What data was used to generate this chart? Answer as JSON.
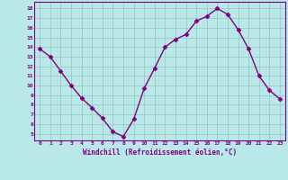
{
  "x": [
    0,
    1,
    2,
    3,
    4,
    5,
    6,
    7,
    8,
    9,
    10,
    11,
    12,
    13,
    14,
    15,
    16,
    17,
    18,
    19,
    20,
    21,
    22,
    23
  ],
  "y": [
    13.8,
    13.0,
    11.5,
    10.0,
    8.7,
    7.7,
    6.6,
    5.2,
    4.7,
    6.5,
    9.7,
    11.8,
    14.0,
    14.8,
    15.3,
    16.7,
    17.2,
    18.0,
    17.4,
    15.8,
    13.8,
    11.0,
    9.5,
    8.6
  ],
  "xlim": [
    -0.5,
    23.5
  ],
  "ylim": [
    4.3,
    18.7
  ],
  "yticks": [
    5,
    6,
    7,
    8,
    9,
    10,
    11,
    12,
    13,
    14,
    15,
    16,
    17,
    18
  ],
  "xticks": [
    0,
    1,
    2,
    3,
    4,
    5,
    6,
    7,
    8,
    9,
    10,
    11,
    12,
    13,
    14,
    15,
    16,
    17,
    18,
    19,
    20,
    21,
    22,
    23
  ],
  "xlabel": "Windchill (Refroidissement éolien,°C)",
  "line_color": "#800080",
  "marker": "D",
  "bg_color": "#b8e8e8",
  "grid_color": "#c8dede",
  "label_color": "#800080",
  "tick_color": "#800080",
  "marker_size": 2.5,
  "line_width": 1.0
}
